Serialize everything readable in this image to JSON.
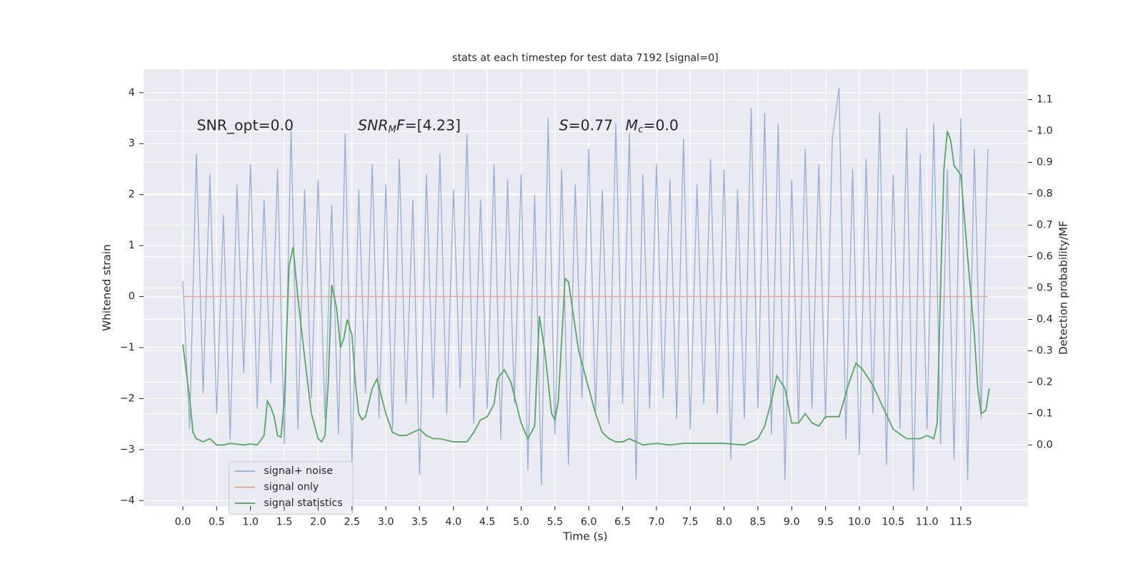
{
  "chart_data": {
    "type": "line",
    "title": "stats at each timestep for test data 7192 [signal=0]",
    "xlabel": "Time (s)",
    "ylabel": "Whitened strain",
    "y2label": "Detection probability/MF",
    "annotations": [
      {
        "parts": [
          "SNR_opt=0.0"
        ]
      },
      {
        "parts": [
          "SNR",
          "M",
          "F",
          "=[4.23]"
        ]
      },
      {
        "parts": [
          "S",
          "=0.77"
        ]
      },
      {
        "parts": [
          "M",
          "c",
          "=0.0"
        ]
      }
    ],
    "xlim": [
      -0.58,
      12.49
    ],
    "ylim": [
      -4.11,
      4.46
    ],
    "y2lim": [
      -0.195,
      1.197
    ],
    "xticks": [
      {
        "value": 0,
        "label": "0.0"
      },
      0.5,
      {
        "value": 1,
        "label": "1.0"
      },
      1.5,
      {
        "value": 2,
        "label": "2.0"
      },
      2.5,
      {
        "value": 3,
        "label": "3.0"
      },
      3.5,
      {
        "value": 4,
        "label": "4.0"
      },
      4.5,
      {
        "value": 5,
        "label": "5.0"
      },
      5.5,
      {
        "value": 6,
        "label": "6.0"
      },
      6.5,
      {
        "value": 7,
        "label": "7.0"
      },
      7.5,
      {
        "value": 8,
        "label": "8.0"
      },
      8.5,
      {
        "value": 9,
        "label": "9.0"
      },
      9.5,
      {
        "value": 10,
        "label": "10.0"
      },
      10.5,
      {
        "value": 11,
        "label": "11.0"
      },
      11.5
    ],
    "yticks": [
      {
        "value": -4,
        "label": "−4"
      },
      {
        "value": -3,
        "label": "−3"
      },
      {
        "value": -2,
        "label": "−2"
      },
      {
        "value": -1,
        "label": "−1"
      },
      0,
      1,
      2,
      3,
      4
    ],
    "y2ticks": [
      {
        "value": 0,
        "label": "0.0"
      },
      0.1,
      0.2,
      0.3,
      0.4,
      0.5,
      0.6,
      0.7,
      0.8,
      0.9,
      {
        "value": 1,
        "label": "1.0"
      },
      1.1
    ],
    "grid": true,
    "legend": "lower left",
    "series": [
      {
        "name": "signal+ noise",
        "color": "#9aaed2",
        "x": [
          0.0,
          0.1,
          0.2,
          0.3,
          0.4,
          0.5,
          0.6,
          0.7,
          0.8,
          0.9,
          1.0,
          1.1,
          1.2,
          1.3,
          1.4,
          1.5,
          1.6,
          1.7,
          1.8,
          1.9,
          2.0,
          2.1,
          2.2,
          2.3,
          2.4,
          2.5,
          2.6,
          2.7,
          2.8,
          2.9,
          3.0,
          3.1,
          3.2,
          3.3,
          3.4,
          3.5,
          3.6,
          3.7,
          3.8,
          3.9,
          4.0,
          4.1,
          4.2,
          4.3,
          4.4,
          4.5,
          4.6,
          4.7,
          4.8,
          4.9,
          5.0,
          5.1,
          5.2,
          5.3,
          5.4,
          5.5,
          5.6,
          5.7,
          5.8,
          5.9,
          6.0,
          6.1,
          6.2,
          6.3,
          6.4,
          6.5,
          6.6,
          6.7,
          6.8,
          6.9,
          7.0,
          7.1,
          7.2,
          7.3,
          7.4,
          7.5,
          7.6,
          7.7,
          7.8,
          7.9,
          8.0,
          8.1,
          8.2,
          8.3,
          8.4,
          8.5,
          8.6,
          8.7,
          8.8,
          8.9,
          9.0,
          9.1,
          9.2,
          9.3,
          9.4,
          9.5,
          9.6,
          9.7,
          9.8,
          9.9,
          10.0,
          10.1,
          10.2,
          10.3,
          10.4,
          10.5,
          10.6,
          10.7,
          10.8,
          10.9,
          11.0,
          11.1,
          11.2,
          11.3,
          11.4,
          11.5,
          11.6,
          11.7,
          11.8,
          11.9
        ],
        "values": [
          0.3,
          -2.6,
          2.8,
          -1.9,
          2.4,
          -2.3,
          1.6,
          -2.8,
          2.2,
          -1.5,
          2.6,
          -2.2,
          1.9,
          -1.7,
          2.5,
          -2.9,
          3.3,
          -2.6,
          2.1,
          -2.0,
          2.3,
          -2.4,
          1.8,
          -2.7,
          3.2,
          -3.3,
          2.1,
          -1.9,
          2.6,
          -2.4,
          2.2,
          -2.6,
          2.7,
          -2.1,
          1.9,
          -3.5,
          2.4,
          -2.0,
          2.8,
          -2.3,
          2.1,
          -1.8,
          3.2,
          -2.5,
          1.9,
          -2.2,
          2.6,
          -2.8,
          2.3,
          -2.1,
          2.4,
          -3.4,
          2.0,
          -3.7,
          3.5,
          -2.7,
          2.5,
          -3.3,
          2.2,
          -2.0,
          2.9,
          -2.3,
          2.1,
          -2.5,
          3.4,
          -2.1,
          3.2,
          -3.6,
          2.4,
          -2.2,
          2.6,
          -2.0,
          2.3,
          -2.4,
          3.1,
          -2.6,
          2.2,
          -2.1,
          2.7,
          -2.3,
          2.5,
          -3.2,
          2.1,
          -2.4,
          3.7,
          -2.2,
          3.6,
          -2.7,
          3.4,
          -3.6,
          2.3,
          -2.5,
          2.9,
          -2.2,
          2.6,
          -2.4,
          3.1,
          4.1,
          -2.8,
          2.5,
          -3.1,
          2.7,
          -2.3,
          3.6,
          -3.3,
          2.4,
          -2.6,
          3.3,
          -3.8,
          2.8,
          -2.6,
          3.4,
          -2.9,
          2.5,
          -3.2,
          3.5,
          -3.6,
          2.9,
          -2.4,
          2.9
        ]
      },
      {
        "name": "signal only",
        "color": "#e5a68c",
        "x": [
          0.0,
          11.9
        ],
        "values": [
          0,
          0
        ]
      },
      {
        "name": "signal statistics",
        "color": "#55a868",
        "axis": "y2",
        "x": [
          0.0,
          0.1,
          0.15,
          0.2,
          0.3,
          0.4,
          0.5,
          0.6,
          0.7,
          0.9,
          1.0,
          1.1,
          1.2,
          1.25,
          1.3,
          1.35,
          1.4,
          1.45,
          1.5,
          1.57,
          1.63,
          1.7,
          1.8,
          1.9,
          2.0,
          2.05,
          2.1,
          2.15,
          2.2,
          2.27,
          2.33,
          2.38,
          2.43,
          2.5,
          2.55,
          2.6,
          2.65,
          2.7,
          2.8,
          2.87,
          3.0,
          3.1,
          3.2,
          3.3,
          3.4,
          3.5,
          3.6,
          3.7,
          3.8,
          4.0,
          4.2,
          4.3,
          4.4,
          4.5,
          4.6,
          4.65,
          4.75,
          4.85,
          5.0,
          5.1,
          5.2,
          5.27,
          5.35,
          5.45,
          5.5,
          5.55,
          5.65,
          5.7,
          5.85,
          6.0,
          6.1,
          6.2,
          6.3,
          6.4,
          6.5,
          6.6,
          6.7,
          6.8,
          7.0,
          7.2,
          7.4,
          7.6,
          7.8,
          8.0,
          8.3,
          8.5,
          8.6,
          8.7,
          8.78,
          8.9,
          9.0,
          9.1,
          9.2,
          9.3,
          9.4,
          9.5,
          9.6,
          9.7,
          9.85,
          9.95,
          10.05,
          10.2,
          10.35,
          10.5,
          10.7,
          10.9,
          11.0,
          11.1,
          11.15,
          11.2,
          11.25,
          11.3,
          11.35,
          11.4,
          11.5,
          11.6,
          11.7,
          11.75,
          11.8,
          11.87,
          11.92
        ],
        "values": [
          0.32,
          0.15,
          0.04,
          0.02,
          0.01,
          0.02,
          0.0,
          0.0,
          0.005,
          0.0,
          0.003,
          0.0,
          0.03,
          0.14,
          0.12,
          0.09,
          0.03,
          0.025,
          0.14,
          0.57,
          0.63,
          0.47,
          0.28,
          0.1,
          0.02,
          0.01,
          0.03,
          0.2,
          0.51,
          0.44,
          0.31,
          0.34,
          0.4,
          0.35,
          0.2,
          0.1,
          0.08,
          0.09,
          0.18,
          0.21,
          0.1,
          0.04,
          0.03,
          0.03,
          0.04,
          0.05,
          0.03,
          0.02,
          0.02,
          0.01,
          0.01,
          0.04,
          0.08,
          0.09,
          0.13,
          0.21,
          0.24,
          0.2,
          0.07,
          0.02,
          0.06,
          0.41,
          0.3,
          0.1,
          0.08,
          0.14,
          0.53,
          0.52,
          0.3,
          0.18,
          0.1,
          0.04,
          0.02,
          0.01,
          0.01,
          0.02,
          0.01,
          0.0,
          0.005,
          0.0,
          0.005,
          0.005,
          0.005,
          0.005,
          0.0,
          0.02,
          0.06,
          0.14,
          0.22,
          0.18,
          0.07,
          0.07,
          0.1,
          0.07,
          0.06,
          0.09,
          0.09,
          0.09,
          0.2,
          0.26,
          0.24,
          0.19,
          0.12,
          0.05,
          0.02,
          0.02,
          0.03,
          0.02,
          0.07,
          0.5,
          0.88,
          1.0,
          0.97,
          0.89,
          0.86,
          0.6,
          0.35,
          0.18,
          0.1,
          0.11,
          0.18
        ]
      }
    ]
  }
}
